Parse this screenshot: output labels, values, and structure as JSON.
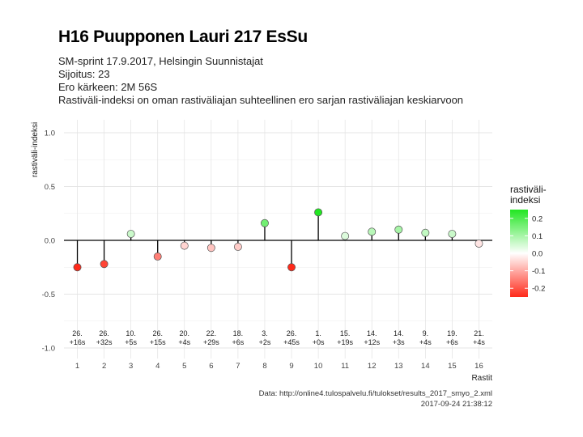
{
  "header": {
    "title": "H16 Puupponen Lauri 217 EsSu",
    "subtitle_lines": [
      "SM-sprint 17.9.2017, Helsingin Suunnistajat",
      "Sijoitus: 23",
      "Ero kärkeen: 2M 56S",
      "Rastiväli-indeksi on oman rastiväliajan suhteellinen ero sarjan rastiväliajan keskiarvoon"
    ]
  },
  "chart_data": {
    "type": "scatter",
    "style": "lollipop",
    "xlabel": "Rastit",
    "ylabel": "rastiväli-indeksi",
    "xlim": [
      0.5,
      16.5
    ],
    "ylim": [
      -1.0,
      1.0
    ],
    "x_ticks": [
      "1",
      "2",
      "3",
      "4",
      "5",
      "6",
      "7",
      "8",
      "9",
      "10",
      "11",
      "12",
      "13",
      "14",
      "15",
      "16"
    ],
    "y_ticks": [
      "-1.0",
      "-0.5",
      "0.0",
      "0.5",
      "1.0"
    ],
    "y_tick_values": [
      -1.0,
      -0.5,
      0.0,
      0.5,
      1.0
    ],
    "grid": true,
    "points": [
      {
        "x": 1,
        "y": -0.25,
        "rank": "26.",
        "diff": "+16s"
      },
      {
        "x": 2,
        "y": -0.22,
        "rank": "26.",
        "diff": "+32s"
      },
      {
        "x": 3,
        "y": 0.06,
        "rank": "10.",
        "diff": "+5s"
      },
      {
        "x": 4,
        "y": -0.15,
        "rank": "26.",
        "diff": "+15s"
      },
      {
        "x": 5,
        "y": -0.05,
        "rank": "20.",
        "diff": "+4s"
      },
      {
        "x": 6,
        "y": -0.07,
        "rank": "22.",
        "diff": "+29s"
      },
      {
        "x": 7,
        "y": -0.06,
        "rank": "18.",
        "diff": "+6s"
      },
      {
        "x": 8,
        "y": 0.16,
        "rank": "3.",
        "diff": "+2s"
      },
      {
        "x": 9,
        "y": -0.25,
        "rank": "26.",
        "diff": "+45s"
      },
      {
        "x": 10,
        "y": 0.26,
        "rank": "1.",
        "diff": "+0s"
      },
      {
        "x": 11,
        "y": 0.04,
        "rank": "15.",
        "diff": "+19s"
      },
      {
        "x": 12,
        "y": 0.08,
        "rank": "14.",
        "diff": "+12s"
      },
      {
        "x": 13,
        "y": 0.1,
        "rank": "14.",
        "diff": "+3s"
      },
      {
        "x": 14,
        "y": 0.07,
        "rank": "9.",
        "diff": "+4s"
      },
      {
        "x": 15,
        "y": 0.06,
        "rank": "19.",
        "diff": "+6s"
      },
      {
        "x": 16,
        "y": -0.03,
        "rank": "21.",
        "diff": "+4s"
      }
    ],
    "legend": {
      "title_lines": [
        "rastiväli-",
        "indeksi"
      ],
      "ticks": [
        "0.2",
        "0.1",
        "0.0",
        "-0.1",
        "-0.2"
      ],
      "tick_values": [
        0.2,
        0.1,
        0.0,
        -0.1,
        -0.2
      ],
      "range": [
        -0.25,
        0.25
      ],
      "placement": "right",
      "colors": {
        "low": "#ff2a1a",
        "mid": "#ffffff",
        "high": "#22e622"
      }
    },
    "caption": [
      "Data: http://online4.tulospalvelu.fi/tulokset/results_2017_smyo_2.xml",
      "2017-09-24 21:38:12"
    ]
  }
}
